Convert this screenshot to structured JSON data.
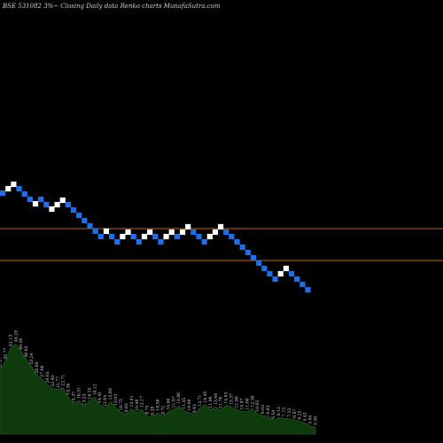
{
  "chart_data": {
    "type": "renko",
    "title": "BSE 531082  3%~  Closing Daily data  Renko  charts MunafaSutra.com",
    "colors": {
      "background": "#000000",
      "up_brick": "#ffffff",
      "down_brick": "#1f6fe8",
      "reference_line": "#b5651d",
      "volume_fill": "#0e3a0e",
      "volume_edge": "#1f5a1f",
      "text": "#cfcfcf"
    },
    "reference_levels": [
      258,
      294
    ],
    "bricks": [
      {
        "dir": "down",
        "level": 218
      },
      {
        "dir": "up",
        "level": 213
      },
      {
        "dir": "up",
        "level": 208
      },
      {
        "dir": "down",
        "level": 213
      },
      {
        "dir": "down",
        "level": 219
      },
      {
        "dir": "down",
        "level": 225
      },
      {
        "dir": "up",
        "level": 230
      },
      {
        "dir": "down",
        "level": 225
      },
      {
        "dir": "down",
        "level": 231
      },
      {
        "dir": "up",
        "level": 236
      },
      {
        "dir": "up",
        "level": 231
      },
      {
        "dir": "up",
        "level": 226
      },
      {
        "dir": "down",
        "level": 231
      },
      {
        "dir": "down",
        "level": 237
      },
      {
        "dir": "down",
        "level": 243
      },
      {
        "dir": "down",
        "level": 249
      },
      {
        "dir": "down",
        "level": 255
      },
      {
        "dir": "down",
        "level": 261
      },
      {
        "dir": "down",
        "level": 267
      },
      {
        "dir": "up",
        "level": 261
      },
      {
        "dir": "down",
        "level": 267
      },
      {
        "dir": "down",
        "level": 273
      },
      {
        "dir": "up",
        "level": 267
      },
      {
        "dir": "up",
        "level": 262
      },
      {
        "dir": "down",
        "level": 267
      },
      {
        "dir": "down",
        "level": 273
      },
      {
        "dir": "up",
        "level": 267
      },
      {
        "dir": "up",
        "level": 262
      },
      {
        "dir": "down",
        "level": 267
      },
      {
        "dir": "down",
        "level": 273
      },
      {
        "dir": "up",
        "level": 267
      },
      {
        "dir": "up",
        "level": 262
      },
      {
        "dir": "down",
        "level": 267
      },
      {
        "dir": "up",
        "level": 262
      },
      {
        "dir": "up",
        "level": 256
      },
      {
        "dir": "down",
        "level": 262
      },
      {
        "dir": "down",
        "level": 267
      },
      {
        "dir": "down",
        "level": 273
      },
      {
        "dir": "up",
        "level": 267
      },
      {
        "dir": "up",
        "level": 262
      },
      {
        "dir": "up",
        "level": 256
      },
      {
        "dir": "down",
        "level": 262
      },
      {
        "dir": "down",
        "level": 267
      },
      {
        "dir": "down",
        "level": 273
      },
      {
        "dir": "down",
        "level": 279
      },
      {
        "dir": "down",
        "level": 285
      },
      {
        "dir": "down",
        "level": 291
      },
      {
        "dir": "down",
        "level": 297
      },
      {
        "dir": "down",
        "level": 303
      },
      {
        "dir": "down",
        "level": 309
      },
      {
        "dir": "down",
        "level": 315
      },
      {
        "dir": "up",
        "level": 309
      },
      {
        "dir": "up",
        "level": 303
      },
      {
        "dir": "down",
        "level": 309
      },
      {
        "dir": "down",
        "level": 315
      },
      {
        "dir": "down",
        "level": 321
      },
      {
        "dir": "down",
        "level": 327
      }
    ],
    "volume": {
      "values": [
        31.27,
        35.77,
        42.13,
        44.28,
        40.5,
        36.63,
        33.24,
        28.89,
        27.06,
        24.03,
        22.4,
        21.77,
        22.71,
        18.36,
        14.37,
        16.51,
        13.25,
        16.25,
        18.12,
        14.41,
        12.64,
        15.89,
        13.03,
        10.75,
        9.83,
        12.41,
        10.46,
        12.17,
        8.75,
        8.28,
        10.58,
        8.72,
        10.96,
        11.97,
        13.86,
        11.35,
        10.6,
        9.43,
        12.71,
        14.45,
        11.9,
        13.44,
        11.76,
        14.03,
        13.37,
        11.96,
        10.97,
        11.06,
        12.38,
        10.05,
        9.03,
        8.83,
        6.54,
        8.12,
        7.73,
        7.52,
        6.97,
        6.25,
        5.43,
        3.94,
        3.38
      ],
      "labels": [
        "31.27",
        "35.77",
        "42.13",
        "44.28",
        "40.50",
        "36.63",
        "33.24",
        "28.89",
        "27.06",
        "24.03",
        "22.40",
        "21.77",
        "22.71",
        "18.36",
        "14.37",
        "16.51",
        "13.25",
        "16.25",
        "18.12",
        "14.41",
        "12.64",
        "15.89",
        "13.03",
        "10.75",
        "9.83",
        "12.41",
        "10.46",
        "12.17",
        "8.75",
        "8.28",
        "10.58",
        "8.72",
        "10.96",
        "11.97",
        "13.86",
        "11.35",
        "10.60",
        "9.43",
        "12.71",
        "14.45",
        "11.90",
        "13.44",
        "11.76",
        "14.03",
        "13.37",
        "11.96",
        "10.97",
        "11.06",
        "12.38",
        "10.05",
        "9.03",
        "8.83",
        "6.54",
        "8.12",
        "7.73",
        "7.52",
        "6.97",
        "6.25",
        "5.43",
        "3.94",
        "3.38"
      ]
    }
  }
}
